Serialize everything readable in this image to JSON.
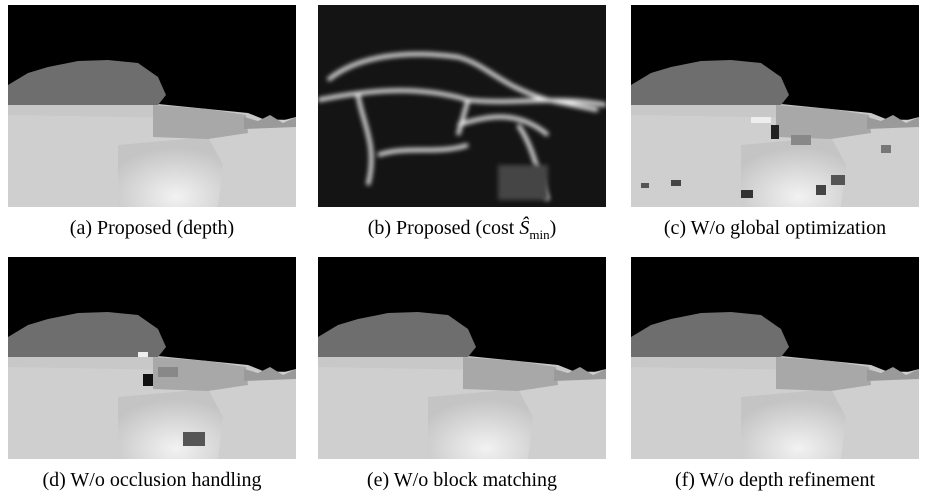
{
  "figure": {
    "panels": [
      {
        "caption": "(a) Proposed (depth)"
      },
      {
        "caption": {
          "prefix": "(b) Proposed (cost ",
          "symbol": "Ŝ",
          "subscript": "min",
          "suffix": ")"
        }
      },
      {
        "caption": "(c) W/o global optimization"
      },
      {
        "caption": "(d) W/o occlusion handling"
      },
      {
        "caption": "(e) W/o block matching"
      },
      {
        "caption": "(f) W/o depth refinement"
      }
    ]
  }
}
